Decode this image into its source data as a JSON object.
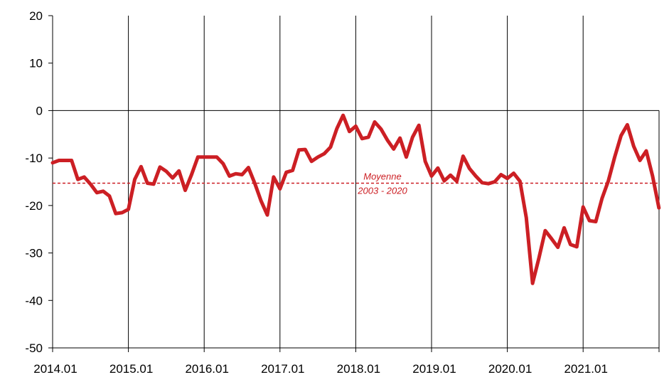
{
  "chart_data": {
    "type": "line",
    "title": "",
    "xlabel": "",
    "ylabel": "",
    "ylim": [
      -50,
      20
    ],
    "yticks": [
      20,
      10,
      0,
      -10,
      -20,
      -30,
      -40,
      -50
    ],
    "x_start": "2014.01",
    "x_end": "2021.12",
    "x_tick_labels": [
      "2014.01",
      "2015.01",
      "2016.01",
      "2017.01",
      "2018.01",
      "2019.01",
      "2020.01",
      "2021.01"
    ],
    "vertical_grid": true,
    "horizontal_grid": false,
    "series": [
      {
        "color": "#cc1f24",
        "values": [
          -11,
          -10.5,
          -10.5,
          -10.5,
          -14.5,
          -14,
          -15.5,
          -17.3,
          -17,
          -18,
          -21.7,
          -21.5,
          -20.8,
          -14.5,
          -11.8,
          -15.3,
          -15.5,
          -11.9,
          -12.8,
          -14.2,
          -12.7,
          -16.8,
          -13.5,
          -9.8,
          -9.8,
          -9.8,
          -9.8,
          -11.2,
          -13.8,
          -13.3,
          -13.5,
          -12,
          -15.3,
          -19,
          -22,
          -14,
          -16.5,
          -13,
          -12.6,
          -8.3,
          -8.2,
          -10.7,
          -9.8,
          -9.1,
          -7.7,
          -3.8,
          -1,
          -4.4,
          -3.3,
          -5.9,
          -5.6,
          -2.4,
          -3.9,
          -6.2,
          -8.1,
          -5.8,
          -9.8,
          -5.6,
          -3.1,
          -10.7,
          -13.8,
          -12.1,
          -14.8,
          -13.6,
          -14.9,
          -9.6,
          -12.2,
          -13.8,
          -15.2,
          -15.4,
          -15,
          -13.5,
          -14.3,
          -13.2,
          -14.9,
          -22.6,
          -36.4,
          -31.1,
          -25.3,
          -27,
          -28.8,
          -24.7,
          -28.2,
          -28.7,
          -20.3,
          -23.2,
          -23.4,
          -18.5,
          -14.8,
          -9.8,
          -5.3,
          -3,
          -7.5,
          -10.5,
          -8.5,
          -13.8,
          -20.5
        ]
      },
      {
        "style": "dashed",
        "color": "#cc1f24",
        "value": -15.3,
        "label_lines": [
          "Moyenne",
          "2003 - 2020"
        ]
      }
    ]
  }
}
